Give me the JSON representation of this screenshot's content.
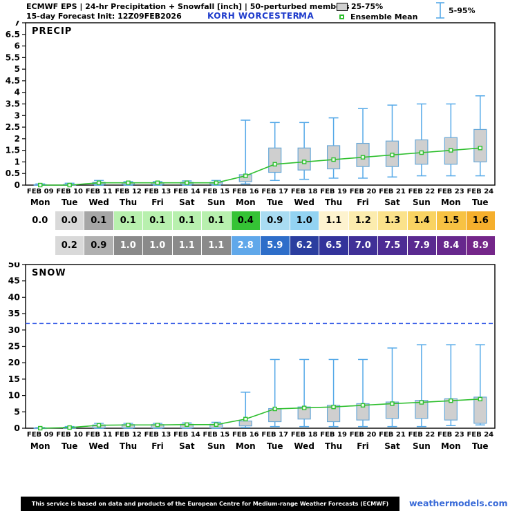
{
  "header": {
    "title_line1": "ECMWF EPS | 24-hr Precipitation + Snowfall [inch] | 50-perturbed members",
    "title_line2": "15-day Forecast Init: 12Z09FEB2026",
    "station": "KORH  WORCESTER",
    "region": "MA",
    "legend": {
      "box": "25-75%",
      "mean": "Ensemble Mean",
      "whisker": "5-95%"
    }
  },
  "axis": {
    "dates": [
      "FEB 09",
      "FEB 10",
      "FEB 11",
      "FEB 12",
      "FEB 13",
      "FEB 14",
      "FEB 15",
      "FEB 16",
      "FEB 17",
      "FEB 18",
      "FEB 19",
      "FEB 20",
      "FEB 21",
      "FEB 22",
      "FEB 23",
      "FEB 24"
    ],
    "days": [
      "Mon",
      "Tue",
      "Wed",
      "Thu",
      "Fri",
      "Sat",
      "Sun",
      "Mon",
      "Tue",
      "Wed",
      "Thu",
      "Fri",
      "Sat",
      "Sun",
      "Mon",
      "Tue"
    ]
  },
  "chart_data": [
    {
      "type": "boxplot",
      "title": "PRECIP",
      "ylabel": "inch",
      "ylim": [
        0,
        7
      ],
      "ytick_step": 0.5,
      "grid": false,
      "categories": [
        "FEB 09",
        "FEB 10",
        "FEB 11",
        "FEB 12",
        "FEB 13",
        "FEB 14",
        "FEB 15",
        "FEB 16",
        "FEB 17",
        "FEB 18",
        "FEB 19",
        "FEB 20",
        "FEB 21",
        "FEB 22",
        "FEB 23",
        "FEB 24"
      ],
      "series": [
        {
          "name": "p5",
          "values": [
            0.0,
            0.0,
            0.0,
            0.0,
            0.0,
            0.0,
            0.0,
            0.05,
            0.2,
            0.25,
            0.3,
            0.3,
            0.35,
            0.4,
            0.4,
            0.4
          ]
        },
        {
          "name": "p25",
          "values": [
            0.0,
            0.0,
            0.03,
            0.03,
            0.03,
            0.03,
            0.03,
            0.15,
            0.55,
            0.65,
            0.7,
            0.8,
            0.8,
            0.9,
            0.9,
            1.0
          ]
        },
        {
          "name": "ensemble_mean",
          "values": [
            0.0,
            0.0,
            0.1,
            0.1,
            0.1,
            0.1,
            0.1,
            0.4,
            0.9,
            1.0,
            1.1,
            1.2,
            1.3,
            1.4,
            1.5,
            1.6
          ]
        },
        {
          "name": "p75",
          "values": [
            0.02,
            0.03,
            0.12,
            0.1,
            0.1,
            0.12,
            0.12,
            0.45,
            1.6,
            1.6,
            1.7,
            1.8,
            1.9,
            1.95,
            2.05,
            2.4
          ]
        },
        {
          "name": "p95",
          "values": [
            0.05,
            0.08,
            0.2,
            0.15,
            0.15,
            0.18,
            0.2,
            2.8,
            2.7,
            2.7,
            2.9,
            3.3,
            3.45,
            3.5,
            3.5,
            3.85
          ]
        }
      ]
    },
    {
      "type": "boxplot",
      "title": "SNOW",
      "ylabel": "inch",
      "ylim": [
        0,
        50
      ],
      "ytick_step": 5,
      "grid": false,
      "threshold": 32,
      "categories": [
        "FEB 09",
        "FEB 10",
        "FEB 11",
        "FEB 12",
        "FEB 13",
        "FEB 14",
        "FEB 15",
        "FEB 16",
        "FEB 17",
        "FEB 18",
        "FEB 19",
        "FEB 20",
        "FEB 21",
        "FEB 22",
        "FEB 23",
        "FEB 24"
      ],
      "series": [
        {
          "name": "p5",
          "values": [
            0.0,
            0.0,
            0.0,
            0.0,
            0.0,
            0.0,
            0.0,
            0.2,
            0.5,
            0.5,
            0.5,
            0.5,
            0.5,
            0.5,
            0.8,
            1.0
          ]
        },
        {
          "name": "p25",
          "values": [
            0.0,
            0.0,
            0.1,
            0.1,
            0.1,
            0.1,
            0.1,
            0.7,
            2.0,
            2.8,
            2.0,
            2.5,
            3.0,
            3.0,
            2.5,
            1.5
          ]
        },
        {
          "name": "ensemble_mean",
          "values": [
            0.0,
            0.2,
            0.9,
            1.0,
            1.0,
            1.1,
            1.1,
            2.8,
            5.9,
            6.2,
            6.5,
            7.0,
            7.5,
            7.9,
            8.4,
            8.9
          ]
        },
        {
          "name": "p75",
          "values": [
            0.1,
            0.3,
            1.0,
            1.1,
            1.1,
            1.2,
            1.2,
            2.2,
            6.0,
            6.5,
            7.0,
            7.5,
            8.0,
            8.5,
            9.0,
            9.5
          ]
        },
        {
          "name": "p95",
          "values": [
            0.2,
            0.5,
            1.5,
            1.5,
            1.5,
            1.6,
            1.8,
            11.0,
            21.0,
            21.0,
            21.0,
            21.0,
            24.5,
            25.5,
            25.5,
            25.5
          ]
        }
      ]
    }
  ],
  "tables": [
    {
      "name": "cumulative_precip_inch",
      "cells": [
        {
          "v": "0.0",
          "bg": "#ffffff",
          "fg": "#000000"
        },
        {
          "v": "0.0",
          "bg": "#d9d9d9",
          "fg": "#000000"
        },
        {
          "v": "0.1",
          "bg": "#a6a6a6",
          "fg": "#000000"
        },
        {
          "v": "0.1",
          "bg": "#b8f0ae",
          "fg": "#000000"
        },
        {
          "v": "0.1",
          "bg": "#b8f0ae",
          "fg": "#000000"
        },
        {
          "v": "0.1",
          "bg": "#b8f0ae",
          "fg": "#000000"
        },
        {
          "v": "0.1",
          "bg": "#b8f0ae",
          "fg": "#000000"
        },
        {
          "v": "0.4",
          "bg": "#35c335",
          "fg": "#000000"
        },
        {
          "v": "0.9",
          "bg": "#a9dcf2",
          "fg": "#000000"
        },
        {
          "v": "1.0",
          "bg": "#93d3f2",
          "fg": "#000000"
        },
        {
          "v": "1.1",
          "bg": "#fdf3cf",
          "fg": "#000000"
        },
        {
          "v": "1.2",
          "bg": "#fcecae",
          "fg": "#000000"
        },
        {
          "v": "1.3",
          "bg": "#fbe28b",
          "fg": "#000000"
        },
        {
          "v": "1.4",
          "bg": "#f9d362",
          "fg": "#000000"
        },
        {
          "v": "1.5",
          "bg": "#f7c243",
          "fg": "#000000"
        },
        {
          "v": "1.6",
          "bg": "#f5af2d",
          "fg": "#000000"
        }
      ]
    },
    {
      "name": "cumulative_snow_inch",
      "cells": [
        {
          "v": "",
          "bg": "#ffffff",
          "fg": "#000000"
        },
        {
          "v": "0.2",
          "bg": "#d9d9d9",
          "fg": "#000000"
        },
        {
          "v": "0.9",
          "bg": "#b0b0b0",
          "fg": "#000000"
        },
        {
          "v": "1.0",
          "bg": "#8a8a8a",
          "fg": "#ffffff"
        },
        {
          "v": "1.0",
          "bg": "#8a8a8a",
          "fg": "#ffffff"
        },
        {
          "v": "1.1",
          "bg": "#8a8a8a",
          "fg": "#ffffff"
        },
        {
          "v": "1.1",
          "bg": "#8a8a8a",
          "fg": "#ffffff"
        },
        {
          "v": "2.8",
          "bg": "#60a8ea",
          "fg": "#ffffff"
        },
        {
          "v": "5.9",
          "bg": "#2e6ec9",
          "fg": "#ffffff"
        },
        {
          "v": "6.2",
          "bg": "#2b3e9f",
          "fg": "#ffffff"
        },
        {
          "v": "6.5",
          "bg": "#33339b",
          "fg": "#ffffff"
        },
        {
          "v": "7.0",
          "bg": "#403097",
          "fg": "#ffffff"
        },
        {
          "v": "7.5",
          "bg": "#4d2c94",
          "fg": "#ffffff"
        },
        {
          "v": "7.9",
          "bg": "#5a2a90",
          "fg": "#ffffff"
        },
        {
          "v": "8.4",
          "bg": "#67288d",
          "fg": "#ffffff"
        },
        {
          "v": "8.9",
          "bg": "#742689",
          "fg": "#ffffff"
        }
      ]
    }
  ],
  "colors": {
    "whisker": "#55a9e8",
    "box_fill": "#cfcfcf",
    "box_stroke": "#6aa9d8",
    "mean_line": "#2fbf2f",
    "mean_marker_fill": "#eefbee",
    "threshold": "#3359e6",
    "station_text": "#1f3ccc",
    "link": "#3a6bd8"
  },
  "footer": {
    "disclaimer": "This service is based on data and products of the European Centre for Medium-range Weather Forecasts (ECMWF)",
    "site": "weathermodels.com"
  }
}
